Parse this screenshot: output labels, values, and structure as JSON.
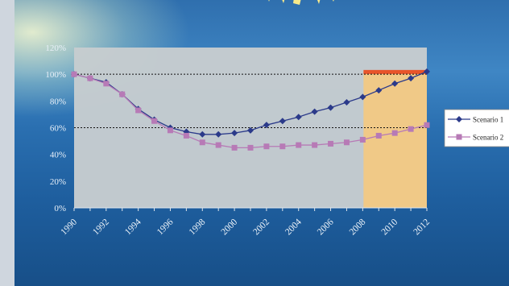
{
  "chart_data": {
    "type": "line",
    "title": "",
    "x": [
      "1990",
      "1991",
      "1992",
      "1993",
      "1994",
      "1995",
      "1996",
      "1997",
      "1998",
      "1999",
      "2000",
      "2001",
      "2002",
      "2003",
      "2004",
      "2005",
      "2006",
      "2007",
      "2008",
      "2009",
      "2010",
      "2011",
      "2012"
    ],
    "x_tick_labels": [
      "1990",
      "1992",
      "1994",
      "1996",
      "1998",
      "2000",
      "2002",
      "2004",
      "2006",
      "2008",
      "2010",
      "2012"
    ],
    "y_tick_labels": [
      "0%",
      "20%",
      "40%",
      "60%",
      "80%",
      "100%",
      "120%"
    ],
    "ylim": [
      0,
      120
    ],
    "series": [
      {
        "name": "Scenario 1",
        "color": "#2b3a8a",
        "marker": "diamond",
        "values": [
          100,
          97,
          94,
          85,
          74,
          66,
          60,
          57,
          55,
          55,
          56,
          58,
          62,
          65,
          68,
          72,
          75,
          79,
          83,
          88,
          93,
          97,
          102
        ]
      },
      {
        "name": "Scenario 2",
        "color": "#b77ab6",
        "marker": "square",
        "values": [
          100,
          97,
          93,
          85,
          73,
          65,
          58,
          54,
          49,
          47,
          45,
          45,
          46,
          46,
          47,
          47,
          48,
          49,
          51,
          54,
          56,
          59,
          62
        ]
      }
    ],
    "reference_lines": [
      100,
      60
    ],
    "highlight": {
      "from": "2008",
      "to": "2012",
      "color": "#f0c987",
      "top_band_color": "#e8542a"
    },
    "legend_placement": "right",
    "legend_labels": [
      "Scenario 1",
      "Scenario 2"
    ],
    "grid": false
  }
}
